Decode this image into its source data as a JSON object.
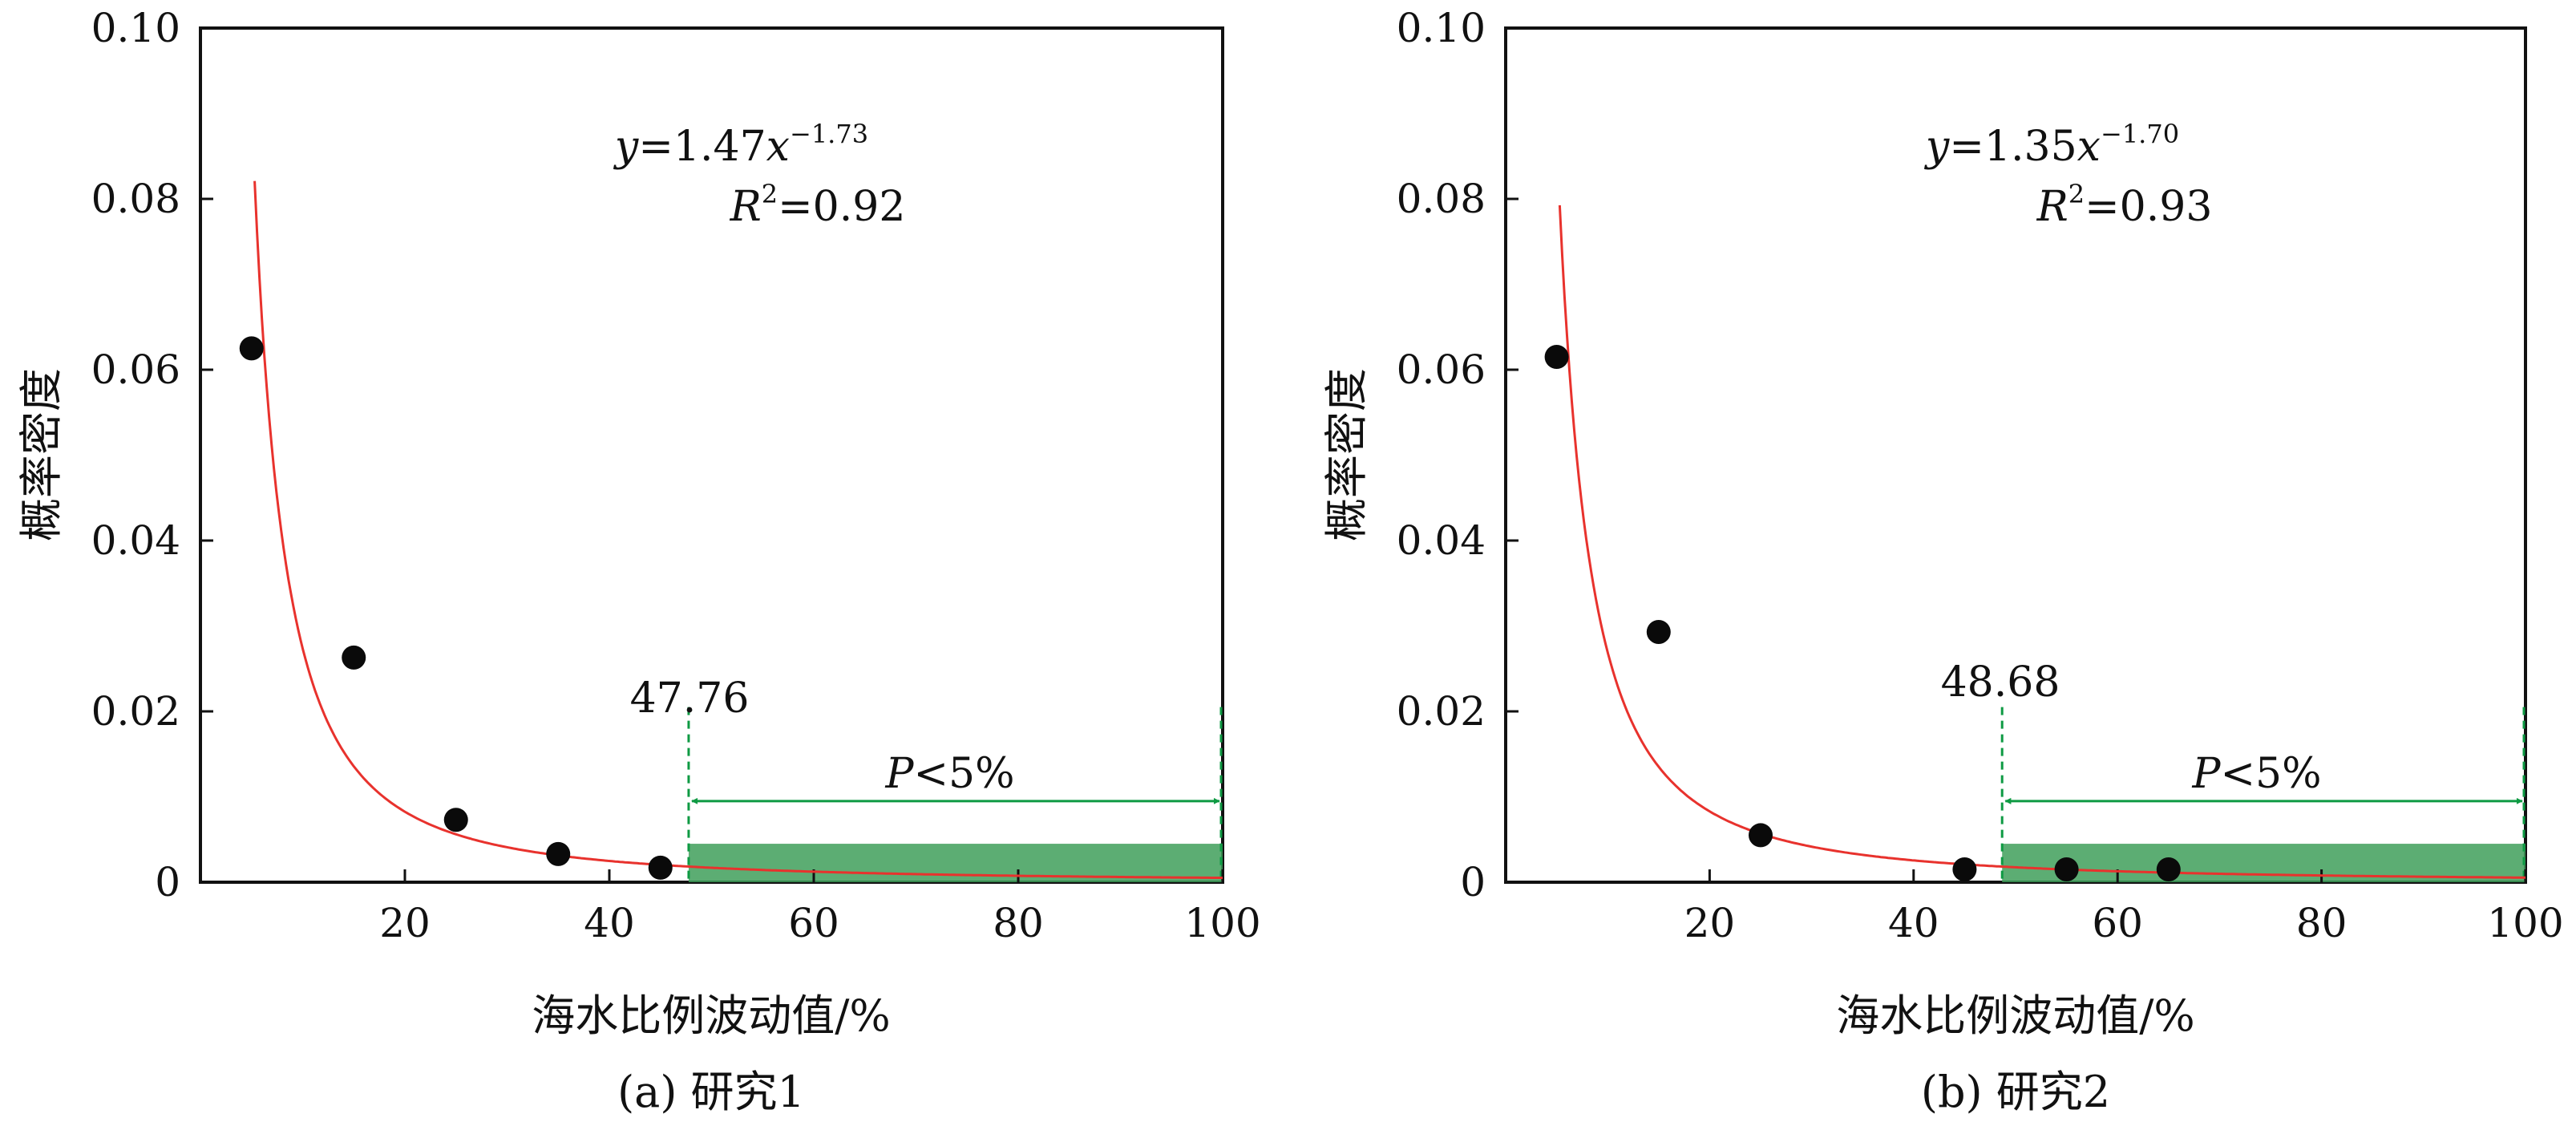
{
  "colors": {
    "fit_line": "#e8322d",
    "points": "#0a0a0a",
    "region_fill": "#3f9f5a",
    "arrow": "#0e9a43",
    "threshold_line": "#0e9a43",
    "axis": "#111111"
  },
  "chart_data": [
    {
      "type": "scatter",
      "caption": "(a) 研究1",
      "xlabel": "海水比例波动值/%",
      "ylabel": "概率密度",
      "xlim": [
        0,
        100
      ],
      "ylim": [
        0,
        0.1
      ],
      "xticks": [
        20,
        40,
        60,
        80,
        100
      ],
      "xtick_labels": [
        "20",
        "40",
        "60",
        "80",
        "100"
      ],
      "yticks": [
        0,
        0.02,
        0.04,
        0.06,
        0.08,
        0.1
      ],
      "ytick_labels": [
        "0",
        "0.02",
        "0.04",
        "0.06",
        "0.08",
        "0.10"
      ],
      "grid": false,
      "points": [
        {
          "x": 5,
          "y": 0.0625
        },
        {
          "x": 15,
          "y": 0.0263
        },
        {
          "x": 25,
          "y": 0.0073
        },
        {
          "x": 35,
          "y": 0.0033
        },
        {
          "x": 45,
          "y": 0.0017
        }
      ],
      "fit": {
        "a": 1.47,
        "b": -1.73,
        "x_start": 5.3
      },
      "equation": {
        "y_var": "y",
        "equals_coef": "=1.47",
        "x_var": "x",
        "exponent": "−1.73"
      },
      "r2": {
        "r": "R",
        "sup": "2",
        "value": "=0.92"
      },
      "threshold": {
        "x": 47.76,
        "label": "47.76"
      },
      "region": {
        "x_start": 47.76,
        "x_end": 100,
        "y_top": 0.0045
      },
      "p_label": {
        "p": "P",
        "rest": "<5%"
      }
    },
    {
      "type": "scatter",
      "caption": "(b) 研究2",
      "xlabel": "海水比例波动值/%",
      "ylabel": "概率密度",
      "xlim": [
        0,
        100
      ],
      "ylim": [
        0,
        0.1
      ],
      "xticks": [
        20,
        40,
        60,
        80,
        100
      ],
      "xtick_labels": [
        "20",
        "40",
        "60",
        "80",
        "100"
      ],
      "yticks": [
        0,
        0.02,
        0.04,
        0.06,
        0.08,
        0.1
      ],
      "ytick_labels": [
        "0",
        "0.02",
        "0.04",
        "0.06",
        "0.08",
        "0.10"
      ],
      "grid": false,
      "points": [
        {
          "x": 5,
          "y": 0.0615
        },
        {
          "x": 15,
          "y": 0.0293
        },
        {
          "x": 25,
          "y": 0.0055
        },
        {
          "x": 45,
          "y": 0.0015
        },
        {
          "x": 55,
          "y": 0.0015
        },
        {
          "x": 65,
          "y": 0.0015
        }
      ],
      "fit": {
        "a": 1.35,
        "b": -1.7,
        "x_start": 5.3
      },
      "equation": {
        "y_var": "y",
        "equals_coef": "=1.35",
        "x_var": "x",
        "exponent": "−1.70"
      },
      "r2": {
        "r": "R",
        "sup": "2",
        "value": "=0.93"
      },
      "threshold": {
        "x": 48.68,
        "label": "48.68"
      },
      "region": {
        "x_start": 48.68,
        "x_end": 100,
        "y_top": 0.0045
      },
      "p_label": {
        "p": "P",
        "rest": "<5%"
      }
    }
  ]
}
